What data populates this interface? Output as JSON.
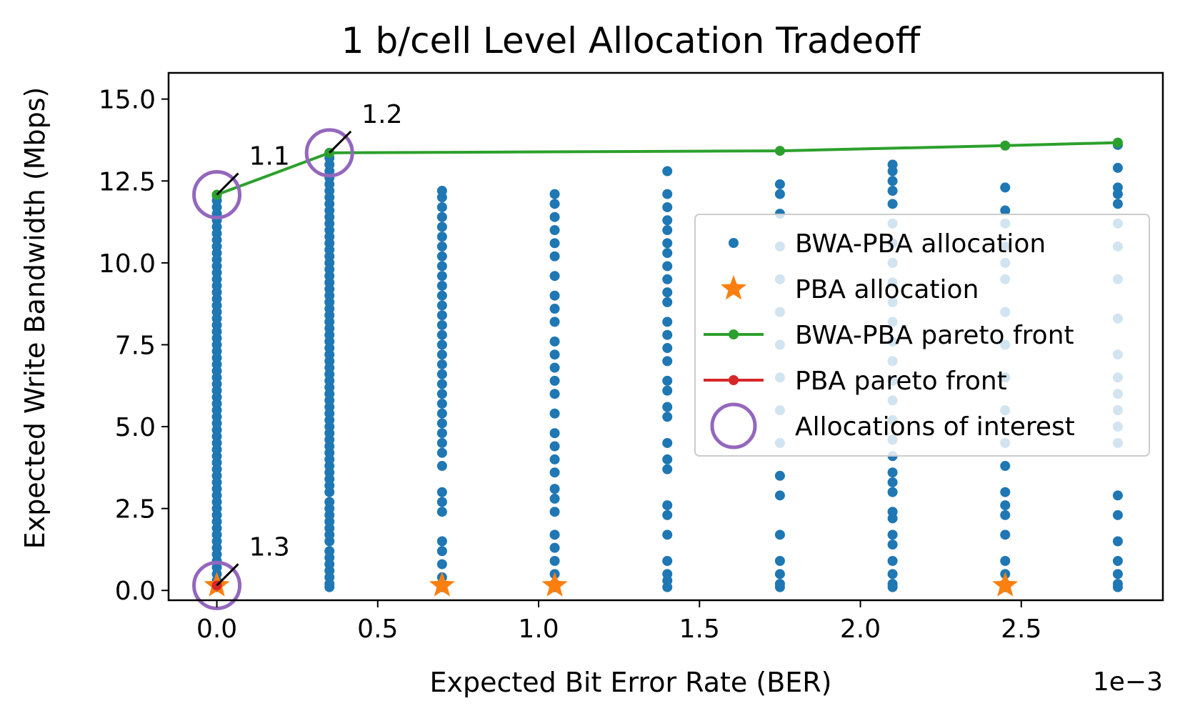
{
  "chart_data": {
    "type": "scatter",
    "title": "1 b/cell Level Allocation Tradeoff",
    "xlabel": "Expected Bit Error Rate (BER)",
    "ylabel": "Expected Write Bandwidth (Mbps)",
    "x_offset_text": "1e−3",
    "xlim": [
      -0.00015,
      0.00294
    ],
    "ylim": [
      -0.3,
      15.8
    ],
    "x_ticks": [
      0,
      0.0005,
      0.001,
      0.0015,
      0.002,
      0.0025
    ],
    "x_tick_labels": [
      "0.0",
      "0.5",
      "1.0",
      "1.5",
      "2.0",
      "2.5"
    ],
    "y_ticks": [
      0,
      2.5,
      5,
      7.5,
      10,
      12.5,
      15
    ],
    "y_tick_labels": [
      "0.0",
      "2.5",
      "5.0",
      "7.5",
      "10.0",
      "12.5",
      "15.0"
    ],
    "grid": false,
    "legend_position": "center-right",
    "series": [
      {
        "name": "BWA-PBA allocation",
        "kind": "points",
        "color": "#1f77b4",
        "columns": [
          {
            "x": 0,
            "y": [
              0.1,
              0.2,
              0.3,
              0.5,
              0.7,
              0.9,
              1.1,
              1.3,
              1.5,
              1.7,
              1.9,
              2.1,
              2.3,
              2.5,
              2.7,
              2.9,
              3.1,
              3.3,
              3.5,
              3.7,
              3.9,
              4.1,
              4.3,
              4.5,
              4.7,
              4.9,
              5.1,
              5.3,
              5.5,
              5.7,
              5.9,
              6.1,
              6.3,
              6.5,
              6.7,
              6.9,
              7.1,
              7.3,
              7.5,
              7.7,
              7.9,
              8.1,
              8.3,
              8.5,
              8.7,
              8.9,
              9.1,
              9.3,
              9.5,
              9.7,
              9.9,
              10.1,
              10.3,
              10.5,
              10.7,
              10.9,
              11.1,
              11.3,
              11.5,
              11.7,
              11.9,
              12.05
            ]
          },
          {
            "x": 0.00035,
            "y": [
              0.1,
              0.2,
              0.4,
              0.6,
              0.8,
              1.0,
              1.2,
              1.5,
              1.7,
              1.9,
              2.1,
              2.3,
              2.5,
              2.7,
              3.0,
              3.2,
              3.4,
              3.6,
              3.8,
              4.0,
              4.2,
              4.4,
              4.6,
              4.8,
              5.0,
              5.2,
              5.4,
              5.6,
              5.8,
              6.0,
              6.2,
              6.4,
              6.6,
              6.8,
              7.0,
              7.2,
              7.4,
              7.6,
              7.8,
              8.0,
              8.2,
              8.4,
              8.6,
              8.8,
              9.0,
              9.2,
              9.4,
              9.6,
              9.8,
              10.0,
              10.2,
              10.4,
              10.6,
              10.8,
              11.0,
              11.2,
              11.4,
              11.6,
              11.8,
              12.0,
              12.2,
              12.4,
              12.6,
              12.8,
              13.0,
              13.2,
              13.36
            ]
          },
          {
            "x": 0.0007,
            "y": [
              0.1,
              0.2,
              0.4,
              0.8,
              1.2,
              1.5,
              2.4,
              2.7,
              3.0,
              3.8,
              4.2,
              4.5,
              4.8,
              5.1,
              5.4,
              5.7,
              6.0,
              6.3,
              6.6,
              6.9,
              7.2,
              7.5,
              7.8,
              8.1,
              8.4,
              8.7,
              9.0,
              9.3,
              9.6,
              9.9,
              10.2,
              10.5,
              10.8,
              11.1,
              11.4,
              11.7,
              12.0,
              12.2
            ]
          },
          {
            "x": 0.00105,
            "y": [
              0.1,
              0.2,
              0.5,
              0.9,
              1.3,
              1.7,
              2.4,
              2.8,
              3.1,
              3.6,
              4.0,
              4.4,
              4.8,
              5.4,
              6.0,
              6.4,
              6.8,
              7.2,
              7.6,
              8.2,
              8.6,
              9.0,
              9.6,
              10.2,
              10.6,
              11.0,
              11.4,
              11.8,
              12.1
            ]
          },
          {
            "x": 0.0014,
            "y": [
              0.1,
              0.3,
              0.5,
              0.9,
              1.7,
              2.3,
              2.6,
              3.7,
              4.0,
              4.5,
              5.3,
              5.6,
              6.1,
              6.4,
              7.0,
              7.4,
              7.8,
              8.2,
              8.8,
              9.1,
              9.5,
              9.9,
              10.3,
              10.6,
              11.0,
              11.3,
              11.7,
              12.1,
              12.8
            ]
          },
          {
            "x": 0.00175,
            "y": [
              0.1,
              0.2,
              0.5,
              0.9,
              1.7,
              2.9,
              3.5,
              4.5,
              5.5,
              6.5,
              7.5,
              8.5,
              9.5,
              10.5,
              11.5,
              12.1,
              12.4
            ]
          },
          {
            "x": 0.0021,
            "y": [
              0.1,
              0.2,
              0.5,
              0.9,
              1.4,
              1.7,
              2.2,
              2.4,
              3.0,
              3.3,
              3.6,
              4.1,
              4.6,
              5.2,
              5.8,
              6.4,
              7.0,
              7.6,
              8.2,
              8.8,
              9.4,
              10.0,
              10.6,
              11.2,
              11.8,
              12.2,
              12.5,
              12.8,
              13.0
            ]
          },
          {
            "x": 0.00245,
            "y": [
              0.1,
              0.2,
              0.5,
              0.9,
              1.7,
              2.3,
              2.6,
              3.0,
              3.8,
              4.5,
              5.5,
              6.5,
              7.5,
              8.5,
              9.5,
              10.0,
              10.5,
              11.2,
              11.6,
              12.3
            ]
          },
          {
            "x": 0.0028,
            "y": [
              0.1,
              0.2,
              0.5,
              0.9,
              1.5,
              2.3,
              2.9,
              4.5,
              5.0,
              5.5,
              6.0,
              6.5,
              7.2,
              8.3,
              9.5,
              10.5,
              11.2,
              11.8,
              12.1,
              12.3,
              12.9,
              13.6
            ]
          }
        ]
      },
      {
        "name": "PBA allocation",
        "kind": "stars",
        "color": "#ff7f0e",
        "x": [
          0,
          0.0007,
          0.00105,
          0.00245
        ],
        "y": [
          0.15,
          0.15,
          0.15,
          0.15
        ]
      },
      {
        "name": "BWA-PBA pareto front",
        "kind": "line",
        "color": "#2ca02c",
        "x": [
          0,
          0.00035,
          0.00175,
          0.00245,
          0.0028
        ],
        "y": [
          12.08,
          13.36,
          13.42,
          13.58,
          13.67
        ]
      },
      {
        "name": "PBA pareto front",
        "kind": "line",
        "color": "#d62728",
        "x": [
          0
        ],
        "y": [
          0.15
        ]
      },
      {
        "name": "Allocations of interest",
        "kind": "circles",
        "color": "#9467bd",
        "x": [
          0,
          0.00035,
          0
        ],
        "y": [
          12.08,
          13.36,
          0.15
        ]
      }
    ],
    "annotations": [
      {
        "text": "1.1",
        "x": 0,
        "y": 12.08
      },
      {
        "text": "1.2",
        "x": 0.00035,
        "y": 13.36
      },
      {
        "text": "1.3",
        "x": 0,
        "y": 0.15
      }
    ]
  }
}
